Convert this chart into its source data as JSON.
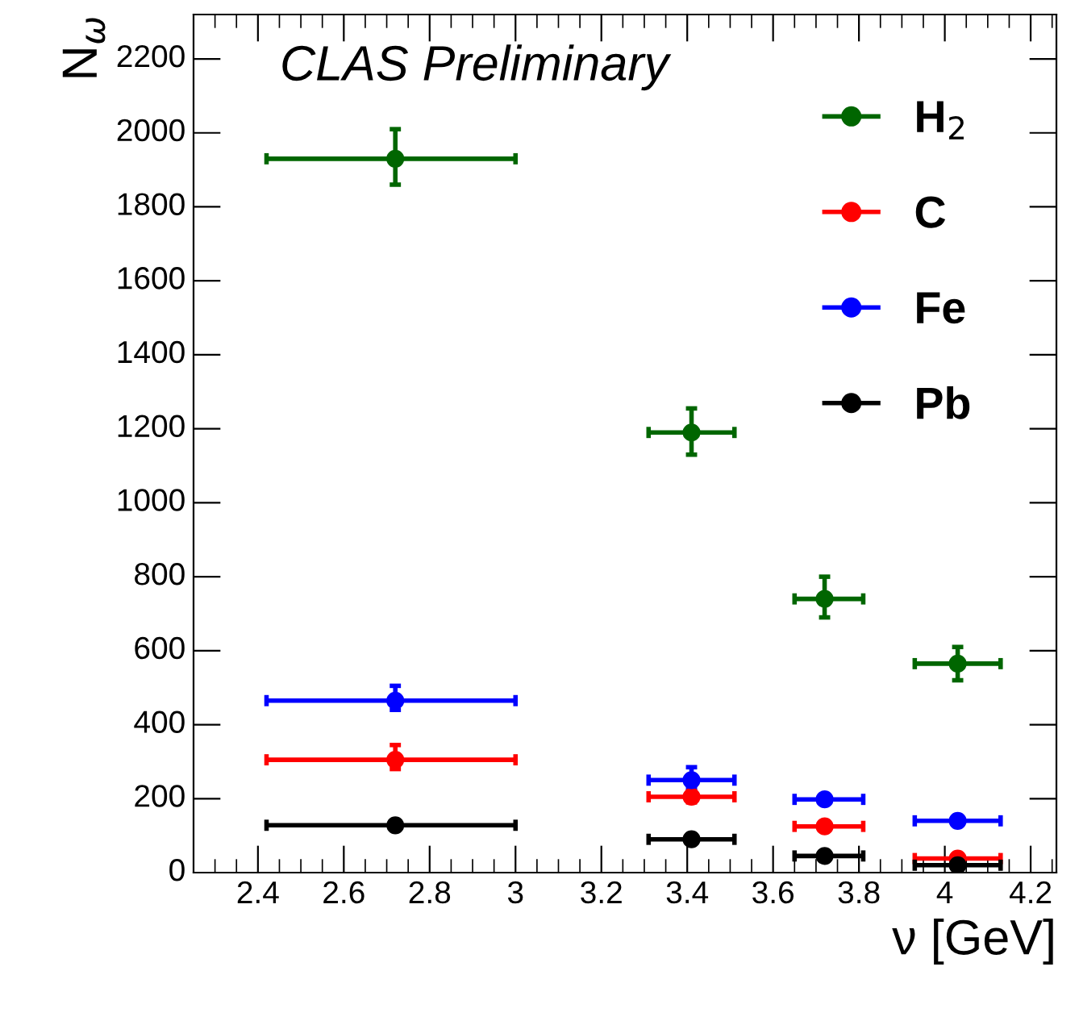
{
  "chart_data": {
    "type": "scatter",
    "xlabel": "ν [GeV]",
    "ylabel": "N$_{ω}$",
    "annotations": [
      "CLAS Preliminary"
    ],
    "x": [
      2.72,
      3.41,
      3.72,
      4.03
    ],
    "series": [
      {
        "name": "H$_{2}$",
        "color": "#006600",
        "values": [
          1930,
          1190,
          740,
          565
        ],
        "errors": [
          [
            1860,
            2010
          ],
          [
            1130,
            1255
          ],
          [
            690,
            800
          ],
          [
            520,
            610
          ]
        ],
        "xerrors": [
          [
            2.42,
            3.0
          ],
          [
            3.31,
            3.51
          ],
          [
            3.65,
            3.81
          ],
          [
            3.93,
            4.13
          ]
        ]
      },
      {
        "name": "C",
        "color": "#ff0000",
        "values": [
          305,
          205,
          125,
          38
        ],
        "errors": [
          [
            280,
            345
          ],
          [
            190,
            220
          ],
          null,
          null
        ],
        "xerrors": [
          [
            2.42,
            3.0
          ],
          [
            3.31,
            3.51
          ],
          [
            3.65,
            3.81
          ],
          [
            3.93,
            4.13
          ]
        ]
      },
      {
        "name": "Fe",
        "color": "#0000ff",
        "values": [
          465,
          250,
          198,
          140
        ],
        "errors": [
          [
            440,
            505
          ],
          [
            230,
            285
          ],
          null,
          null
        ],
        "xerrors": [
          [
            2.42,
            3.0
          ],
          [
            3.31,
            3.51
          ],
          [
            3.65,
            3.81
          ],
          [
            3.93,
            4.13
          ]
        ]
      },
      {
        "name": "Pb",
        "color": "#000000",
        "values": [
          128,
          90,
          45,
          20
        ],
        "errors": [
          null,
          null,
          null,
          null
        ],
        "xerrors": [
          [
            2.42,
            3.0
          ],
          [
            3.31,
            3.51
          ],
          [
            3.65,
            3.81
          ],
          [
            3.93,
            4.13
          ]
        ]
      }
    ],
    "xlim": [
      2.25,
      4.26
    ],
    "ylim": [
      0,
      2320
    ],
    "xticks": [
      2.4,
      2.6,
      2.8,
      3,
      3.2,
      3.4,
      3.6,
      3.8,
      4,
      4.2
    ],
    "yticks": [
      0,
      200,
      400,
      600,
      800,
      1000,
      1200,
      1400,
      1600,
      1800,
      2000,
      2200
    ],
    "marker": "circle",
    "grid": false,
    "legend": "top right"
  }
}
